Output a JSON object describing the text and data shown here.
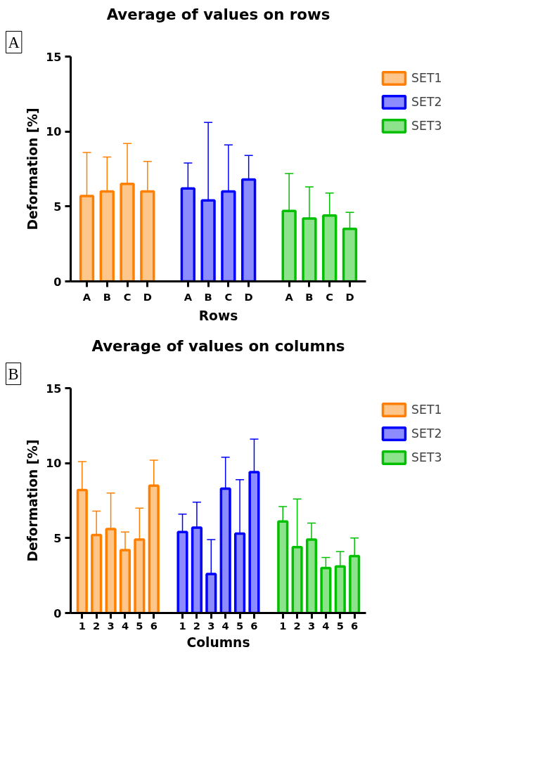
{
  "chart_data": [
    {
      "type": "bar",
      "title": "Average of values on rows",
      "xlabel": "Rows",
      "ylabel": "Deformation [%]",
      "annotations": [
        "A"
      ],
      "categories": [
        "A",
        "B",
        "C",
        "D",
        null,
        "A",
        "B",
        "C",
        "D",
        null,
        "A",
        "B",
        "C",
        "D"
      ],
      "ylim": [
        0,
        15
      ],
      "yticks": [
        0,
        5,
        10,
        15
      ],
      "grid": false,
      "legend": "top right",
      "series": [
        {
          "name": "SET1",
          "color": "#ff8000",
          "values": [
            5.7,
            6.0,
            6.5,
            6.0,
            null,
            null,
            null,
            null,
            null,
            null,
            null,
            null,
            null,
            null
          ],
          "errors": [
            [
              5.7,
              8.6
            ],
            [
              6.0,
              8.3
            ],
            [
              6.5,
              9.2
            ],
            [
              6.0,
              8.0
            ],
            null,
            null,
            null,
            null,
            null,
            null,
            null,
            null,
            null,
            null
          ]
        },
        {
          "name": "SET2",
          "color": "#0000ff",
          "values": [
            null,
            null,
            null,
            null,
            null,
            6.2,
            5.4,
            6.0,
            6.8,
            null,
            null,
            null,
            null,
            null
          ],
          "errors": [
            null,
            null,
            null,
            null,
            null,
            [
              6.2,
              7.9
            ],
            [
              5.4,
              10.6
            ],
            [
              6.0,
              9.1
            ],
            [
              6.8,
              8.4
            ],
            null,
            null,
            null,
            null,
            null
          ]
        },
        {
          "name": "SET3",
          "color": "#00c000",
          "values": [
            null,
            null,
            null,
            null,
            null,
            null,
            null,
            null,
            null,
            null,
            4.7,
            4.2,
            4.4,
            3.5
          ],
          "errors": [
            null,
            null,
            null,
            null,
            null,
            null,
            null,
            null,
            null,
            null,
            [
              4.7,
              7.2
            ],
            [
              4.2,
              6.3
            ],
            [
              4.4,
              5.9
            ],
            [
              3.5,
              4.6
            ]
          ]
        }
      ]
    },
    {
      "type": "bar",
      "title": "Average of values on columns",
      "xlabel": "Columns",
      "ylabel": "Deformation [%]",
      "annotations": [
        "B"
      ],
      "categories": [
        "1",
        "2",
        "3",
        "4",
        "5",
        "6",
        null,
        "1",
        "2",
        "3",
        "4",
        "5",
        "6",
        null,
        "1",
        "2",
        "3",
        "4",
        "5",
        "6"
      ],
      "ylim": [
        0,
        15
      ],
      "yticks": [
        0,
        5,
        10,
        15
      ],
      "grid": false,
      "legend": "top right",
      "series": [
        {
          "name": "SET1",
          "color": "#ff8000",
          "values": [
            8.2,
            5.2,
            5.6,
            4.2,
            4.9,
            8.5,
            null,
            null,
            null,
            null,
            null,
            null,
            null,
            null,
            null,
            null,
            null,
            null,
            null,
            null
          ],
          "errors": [
            [
              8.2,
              10.1
            ],
            [
              5.2,
              6.8
            ],
            [
              5.6,
              8.0
            ],
            [
              4.2,
              5.4
            ],
            [
              4.9,
              7.0
            ],
            [
              8.5,
              10.2
            ],
            null,
            null,
            null,
            null,
            null,
            null,
            null,
            null,
            null,
            null,
            null,
            null,
            null,
            null
          ]
        },
        {
          "name": "SET2",
          "color": "#0000ff",
          "values": [
            null,
            null,
            null,
            null,
            null,
            null,
            null,
            5.4,
            5.7,
            2.6,
            8.3,
            5.3,
            9.4,
            null,
            null,
            null,
            null,
            null,
            null,
            null
          ],
          "errors": [
            null,
            null,
            null,
            null,
            null,
            null,
            null,
            [
              5.4,
              6.6
            ],
            [
              5.7,
              7.4
            ],
            [
              2.6,
              4.9
            ],
            [
              8.3,
              10.4
            ],
            [
              5.3,
              8.9
            ],
            [
              9.4,
              11.6
            ],
            null,
            null,
            null,
            null,
            null,
            null,
            null
          ]
        },
        {
          "name": "SET3",
          "color": "#00c000",
          "values": [
            null,
            null,
            null,
            null,
            null,
            null,
            null,
            null,
            null,
            null,
            null,
            null,
            null,
            null,
            6.1,
            4.4,
            4.9,
            3.0,
            3.1,
            3.8
          ],
          "errors": [
            null,
            null,
            null,
            null,
            null,
            null,
            null,
            null,
            null,
            null,
            null,
            null,
            null,
            null,
            [
              6.1,
              7.1
            ],
            [
              4.4,
              7.6
            ],
            [
              4.9,
              6.0
            ],
            [
              3.0,
              3.7
            ],
            [
              3.1,
              4.1
            ],
            [
              3.8,
              5.0
            ]
          ]
        }
      ]
    }
  ]
}
